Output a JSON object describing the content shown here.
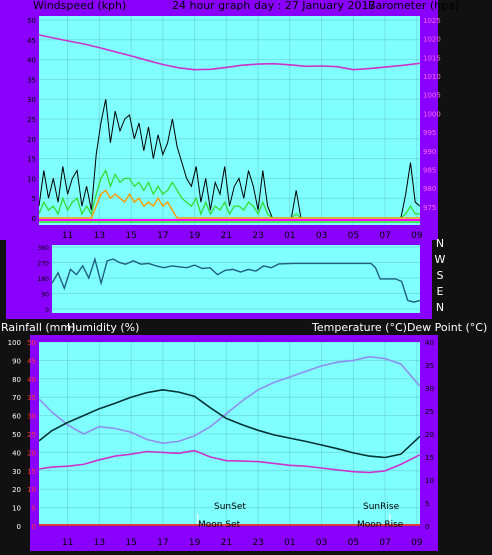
{
  "colors": {
    "frame": "#8a00ff",
    "plot_bg": "#80ffff",
    "black_line": "#000000",
    "wind_avg_green": "#33dd33",
    "wind_avg_orange": "#ff9900",
    "barometer": "#cc33cc",
    "direction": "#1f5f7f",
    "humidity": "#8f8fee",
    "temperature": "#003333",
    "dewpoint": "#cc33cc",
    "rain_red": "#ff0000",
    "moon_white": "#ffffff"
  },
  "panel1": {
    "title_left": "Windspeed (kph)",
    "title_center": "24 hour graph day : 27 January 2017",
    "title_right": "Barometer (hpa)"
  },
  "panel2": {
    "dir_labels": [
      "N",
      "W",
      "S",
      "E",
      "N"
    ]
  },
  "panel3": {
    "title_left1": "Rainfall (mm)",
    "title_left2": "Humidity (%)",
    "title_right": "Temperature (°C)Dew Point (°C)",
    "sunset_label": "SunSet",
    "moonset_label": "Moon Set",
    "sunrise_label": "SunRise",
    "moonrise_label": "Moon Rise"
  },
  "chart_data": [
    {
      "type": "line",
      "title": "24 hour graph day : 27 January 2017",
      "ylabel": "Windspeed (kph)",
      "y2label": "Barometer (hpa)",
      "x_tick_labels": [
        "11",
        "13",
        "15",
        "17",
        "19",
        "21",
        "23",
        "01",
        "03",
        "05",
        "07",
        "09"
      ],
      "x_range_hours": [
        9.2,
        33.2
      ],
      "ylim": [
        0,
        50
      ],
      "y_ticks": [
        0,
        5,
        10,
        15,
        20,
        25,
        30,
        35,
        40,
        45,
        50
      ],
      "y2lim": [
        972,
        1025
      ],
      "y2_ticks": [
        975,
        980,
        985,
        990,
        995,
        1000,
        1005,
        1010,
        1015,
        1020,
        1025
      ],
      "series": [
        {
          "name": "Barometer",
          "axis": "y2",
          "x": [
            9.2,
            10,
            11,
            12,
            13,
            14,
            15,
            16,
            17,
            18,
            19,
            20,
            21,
            22,
            23,
            24,
            25,
            26,
            27,
            28,
            29,
            30,
            31,
            32,
            33.2
          ],
          "values": [
            1021,
            1020.3,
            1019.4,
            1018.6,
            1017.6,
            1016.5,
            1015.4,
            1014.2,
            1013.1,
            1012.2,
            1011.7,
            1011.8,
            1012.3,
            1012.9,
            1013.2,
            1013.3,
            1013,
            1012.6,
            1012.7,
            1012.5,
            1011.7,
            1012,
            1012.4,
            1012.8,
            1013.4
          ]
        },
        {
          "name": "Wind gust",
          "color": "black",
          "x": [
            9.2,
            9.5,
            9.8,
            10.1,
            10.4,
            10.7,
            11,
            11.3,
            11.6,
            11.9,
            12.2,
            12.5,
            12.8,
            13.1,
            13.4,
            13.7,
            14,
            14.3,
            14.6,
            14.9,
            15.2,
            15.5,
            15.8,
            16.1,
            16.4,
            16.7,
            17,
            17.3,
            17.6,
            17.9,
            18.2,
            18.5,
            18.8,
            19.1,
            19.4,
            19.7,
            20,
            20.3,
            20.6,
            20.9,
            21.2,
            21.5,
            21.8,
            22.1,
            22.4,
            22.7,
            23,
            23.3,
            23.6,
            23.9,
            24.2,
            24.5,
            24.8,
            25.1,
            25.4,
            25.7,
            26,
            26.3,
            26.6,
            26.9,
            27.2,
            27.5,
            27.8,
            28.1,
            28.4,
            28.7,
            29,
            29.3,
            29.6,
            29.9,
            30.2,
            30.5,
            30.8,
            31.1,
            31.4,
            31.7,
            32,
            32.3,
            32.6,
            32.9,
            33.2
          ],
          "values": [
            3,
            12,
            5,
            10,
            4,
            13,
            6,
            10,
            12,
            3,
            8,
            2,
            16,
            24,
            30,
            19,
            27,
            22,
            25,
            26,
            20,
            24,
            17,
            23,
            15,
            21,
            16,
            19,
            25,
            18,
            14,
            10,
            8,
            13,
            4,
            10,
            2,
            9,
            6,
            13,
            3,
            8,
            10,
            5,
            12,
            8,
            2,
            12,
            3,
            0,
            0,
            0,
            0,
            0,
            7,
            0,
            0,
            0,
            0,
            0,
            0,
            0,
            0,
            0,
            0,
            0,
            0,
            0,
            0,
            0,
            0,
            0,
            0,
            0,
            0,
            0,
            0,
            6,
            14,
            4,
            3
          ]
        },
        {
          "name": "Wind average",
          "color": "green",
          "x": [
            9.2,
            9.5,
            9.8,
            10.1,
            10.4,
            10.7,
            11,
            11.3,
            11.6,
            11.9,
            12.2,
            12.5,
            12.8,
            13.1,
            13.4,
            13.7,
            14,
            14.3,
            14.6,
            14.9,
            15.2,
            15.5,
            15.8,
            16.1,
            16.4,
            16.7,
            17,
            17.3,
            17.6,
            17.9,
            18.2,
            18.5,
            18.8,
            19.1,
            19.4,
            19.7,
            20,
            20.3,
            20.6,
            20.9,
            21.2,
            21.5,
            21.8,
            22.1,
            22.4,
            22.7,
            23,
            23.3,
            23.6,
            23.9,
            24.2,
            24.5,
            24.8,
            25.1,
            25.4,
            25.7,
            26,
            26.3,
            26.6,
            26.9,
            27.2,
            27.5,
            27.8,
            28.1,
            28.4,
            28.7,
            29,
            29.3,
            29.6,
            29.9,
            30.2,
            30.5,
            30.8,
            31.1,
            31.4,
            31.7,
            32,
            32.3,
            32.6,
            32.9,
            33.2
          ],
          "values": [
            1,
            4,
            2,
            3,
            1,
            5,
            2,
            4,
            5,
            1,
            3,
            1,
            6,
            10,
            12,
            8,
            11,
            9,
            10,
            10,
            8,
            9,
            7,
            9,
            6,
            8,
            6,
            7,
            9,
            7,
            5,
            4,
            3,
            5,
            1,
            4,
            1,
            3,
            2,
            4,
            1,
            3,
            3,
            2,
            4,
            3,
            1,
            4,
            1,
            0,
            0,
            0,
            0,
            0,
            1,
            0,
            0,
            0,
            0,
            0,
            0,
            0,
            0,
            0,
            0,
            0,
            0,
            0,
            0,
            0,
            0,
            0,
            0,
            0,
            0,
            0,
            0,
            1,
            3,
            1,
            1
          ]
        },
        {
          "name": "Wind average",
          "color": "orange",
          "x": [
            9.2,
            9.5,
            9.8,
            10.1,
            10.4,
            10.7,
            11,
            11.3,
            11.6,
            11.9,
            12.2,
            12.5,
            12.8,
            13.1,
            13.4,
            13.7,
            14,
            14.3,
            14.6,
            14.9,
            15.2,
            15.5,
            15.8,
            16.1,
            16.4,
            16.7,
            17,
            17.3,
            17.6,
            17.9,
            18.2,
            18.5,
            18.8,
            19.1,
            19.4,
            19.7,
            20,
            20.3,
            20.6,
            20.9,
            21.2,
            21.5,
            21.8,
            22.1,
            22.4,
            22.7,
            23,
            23.3,
            23.6,
            23.9,
            24.2,
            24.5,
            24.8,
            25.1,
            25.4,
            25.7,
            26,
            26.3,
            26.6,
            26.9,
            27.2,
            27.5,
            27.8,
            28.1,
            28.4,
            28.7,
            29,
            29.3,
            29.6,
            29.9,
            30.2,
            30.5,
            30.8,
            31.1,
            31.4,
            31.7,
            32,
            32.3,
            32.6,
            32.9,
            33.2
          ],
          "values": [
            0,
            0,
            0,
            0,
            0,
            0,
            0,
            0,
            0,
            0,
            0,
            0,
            3,
            6,
            7,
            5,
            6,
            5,
            4,
            6,
            4,
            5,
            3,
            4,
            3,
            5,
            3,
            4,
            2,
            0,
            0,
            0,
            0,
            0,
            0,
            0,
            0,
            0,
            0,
            0,
            0,
            0,
            0,
            0,
            0,
            0,
            0,
            0,
            0,
            0,
            0,
            0,
            0,
            0,
            0,
            0,
            0,
            0,
            0,
            0,
            0,
            0,
            0,
            0,
            0,
            0,
            0,
            0,
            0,
            0,
            0,
            0,
            0,
            0,
            0,
            0,
            0,
            0,
            0,
            0,
            0
          ]
        }
      ]
    },
    {
      "type": "line",
      "ylabel": "Wind direction",
      "x_range_hours": [
        9.2,
        33.2
      ],
      "ylim": [
        0,
        360
      ],
      "y_ticks": [
        0,
        90,
        180,
        270,
        360
      ],
      "y_tick_labels": [
        "N",
        "E",
        "S",
        "W",
        "N"
      ],
      "y_range_degrees": [
        0,
        360
      ],
      "series": [
        {
          "name": "Wind direction",
          "x": [
            9.2,
            9.6,
            10,
            10.4,
            10.8,
            11.2,
            11.6,
            12,
            12.4,
            12.8,
            13.2,
            13.6,
            14,
            14.5,
            15,
            15.5,
            16,
            16.5,
            17,
            17.5,
            18,
            18.5,
            19,
            19.5,
            20,
            20.5,
            21,
            21.5,
            22,
            22.5,
            23,
            23.5,
            24,
            25,
            26,
            27,
            28,
            29,
            30,
            30.3,
            30.6,
            31,
            31.4,
            31.6,
            32,
            32.4,
            32.8,
            33.2
          ],
          "values": [
            150,
            210,
            120,
            230,
            200,
            250,
            180,
            290,
            150,
            280,
            290,
            270,
            260,
            280,
            260,
            265,
            250,
            240,
            250,
            245,
            240,
            255,
            235,
            240,
            200,
            225,
            230,
            215,
            230,
            220,
            250,
            240,
            262,
            265,
            265,
            265,
            265,
            265,
            265,
            240,
            175,
            175,
            175,
            175,
            160,
            50,
            40,
            50
          ]
        }
      ]
    },
    {
      "type": "line",
      "x_tick_labels": [
        "11",
        "13",
        "15",
        "17",
        "19",
        "21",
        "23",
        "01",
        "03",
        "05",
        "07",
        "09"
      ],
      "x_range_hours": [
        9.2,
        33.2
      ],
      "ylabel": "Rainfall (mm) / Humidity (%)",
      "ylim": [
        0,
        100
      ],
      "y_ticks": [
        0,
        10,
        20,
        30,
        40,
        50,
        60,
        70,
        80,
        90,
        100
      ],
      "rain_ylim": [
        0,
        50
      ],
      "rain_ticks": [
        0,
        5,
        10,
        15,
        20,
        25,
        30,
        35,
        40,
        45,
        50
      ],
      "y2label": "Temperature (°C)Dew Point (°C)",
      "y2lim": [
        0,
        40
      ],
      "y2_ticks": [
        0,
        5,
        10,
        15,
        20,
        25,
        30,
        35,
        40
      ],
      "annotations": [
        "SunSet",
        "Moon Set",
        "SunRise",
        "Moon Rise"
      ],
      "series": [
        {
          "name": "Humidity",
          "axis": "y",
          "x": [
            9.2,
            10,
            11,
            12,
            13,
            14,
            15,
            16,
            17,
            18,
            19,
            20,
            21,
            22,
            23,
            24,
            25,
            26,
            27,
            28,
            29,
            30,
            31,
            32,
            33.2
          ],
          "values": [
            69,
            62,
            55,
            50,
            54,
            53,
            51,
            47,
            45,
            46,
            49,
            54,
            61,
            68,
            74,
            78,
            81,
            84,
            87,
            89,
            90,
            92,
            91,
            88,
            76
          ]
        },
        {
          "name": "Temperature",
          "axis": "y2",
          "x": [
            9.2,
            10,
            11,
            12,
            13,
            14,
            15,
            16,
            17,
            18,
            19,
            20,
            21,
            22,
            23,
            24,
            25,
            26,
            27,
            28,
            29,
            30,
            31,
            32,
            33.2
          ],
          "values": [
            18.5,
            20.7,
            22.5,
            24,
            25.5,
            26.7,
            28,
            29,
            29.6,
            29.1,
            28.2,
            25.7,
            23.4,
            22,
            20.8,
            19.8,
            19.1,
            18.4,
            17.6,
            16.8,
            15.9,
            15.2,
            14.9,
            15.6,
            19.5
          ]
        },
        {
          "name": "Dew Point",
          "axis": "y2",
          "x": [
            9.2,
            10,
            11,
            12,
            13,
            14,
            15,
            16,
            17,
            18,
            19,
            20,
            21,
            22,
            23,
            24,
            25,
            26,
            27,
            28,
            29,
            30,
            31,
            32,
            33.2
          ],
          "values": [
            12.4,
            12.8,
            13,
            13.4,
            14.4,
            15.2,
            15.6,
            16.2,
            16,
            15.8,
            16.4,
            15,
            14.2,
            14.1,
            14,
            13.6,
            13.2,
            13,
            12.6,
            12.2,
            11.8,
            11.6,
            12,
            13.4,
            15.5
          ]
        },
        {
          "name": "Rainfall",
          "axis": "rain",
          "x": [
            9.2,
            33.2
          ],
          "values": [
            0,
            0
          ]
        }
      ]
    }
  ]
}
